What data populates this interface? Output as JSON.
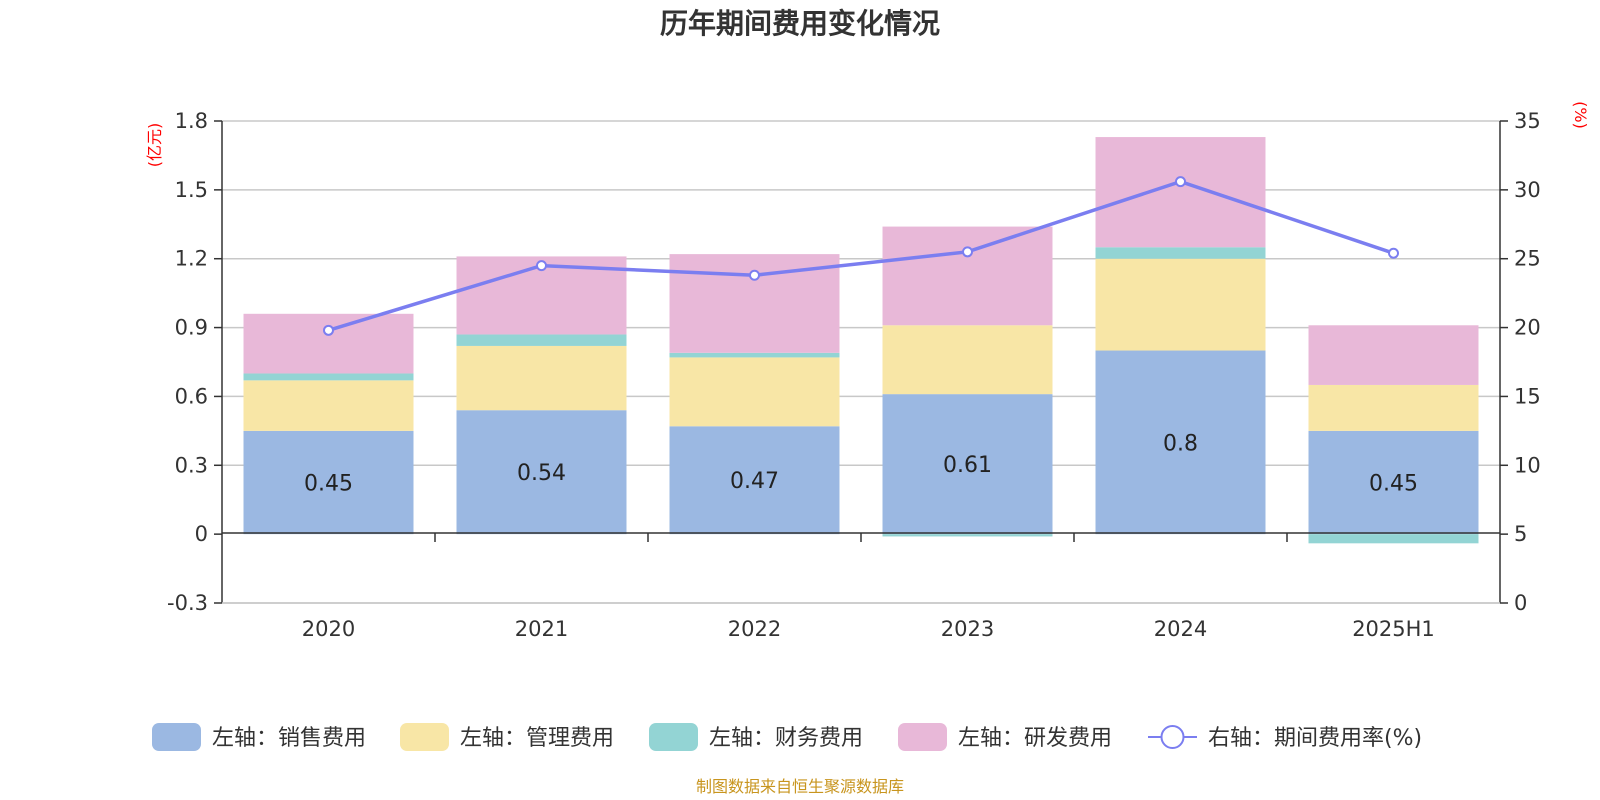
{
  "chart_data": {
    "type": "bar",
    "stacked": true,
    "title": "历年期间费用变化情况",
    "left_unit": "(亿元)",
    "right_unit": "(%)",
    "categories": [
      "2020",
      "2021",
      "2022",
      "2023",
      "2024",
      "2025H1"
    ],
    "left_axis": {
      "min": -0.3,
      "max": 1.8,
      "ticks": [
        "-0.3",
        "0",
        "0.3",
        "0.6",
        "0.9",
        "1.2",
        "1.5",
        "1.8"
      ]
    },
    "right_axis": {
      "min": 0,
      "max": 35,
      "ticks": [
        "0",
        "5",
        "10",
        "15",
        "20",
        "25",
        "30",
        "35"
      ]
    },
    "series": [
      {
        "name": "左轴：销售费用",
        "axis": "left",
        "kind": "bar",
        "color": "#9bb8e2",
        "values": [
          0.45,
          0.54,
          0.47,
          0.61,
          0.8,
          0.45
        ],
        "labels": [
          "0.45",
          "0.54",
          "0.47",
          "0.61",
          "0.8",
          "0.45"
        ]
      },
      {
        "name": "左轴：管理费用",
        "axis": "left",
        "kind": "bar",
        "color": "#f8e6a6",
        "values": [
          0.22,
          0.28,
          0.3,
          0.3,
          0.4,
          0.2
        ]
      },
      {
        "name": "左轴：财务费用",
        "axis": "left",
        "kind": "bar",
        "color": "#93d4d4",
        "values": [
          0.03,
          0.05,
          0.02,
          -0.01,
          0.05,
          -0.04
        ]
      },
      {
        "name": "左轴：研发费用",
        "axis": "left",
        "kind": "bar",
        "color": "#e8b8d8",
        "values": [
          0.26,
          0.34,
          0.43,
          0.43,
          0.48,
          0.26
        ]
      },
      {
        "name": "右轴：期间费用率(%)",
        "axis": "right",
        "kind": "line",
        "color": "#7b7ef0",
        "values": [
          19.8,
          24.5,
          23.8,
          25.5,
          30.6,
          25.4
        ]
      }
    ],
    "legend_position": "bottom",
    "grid": true
  },
  "source": "制图数据来自恒生聚源数据库"
}
